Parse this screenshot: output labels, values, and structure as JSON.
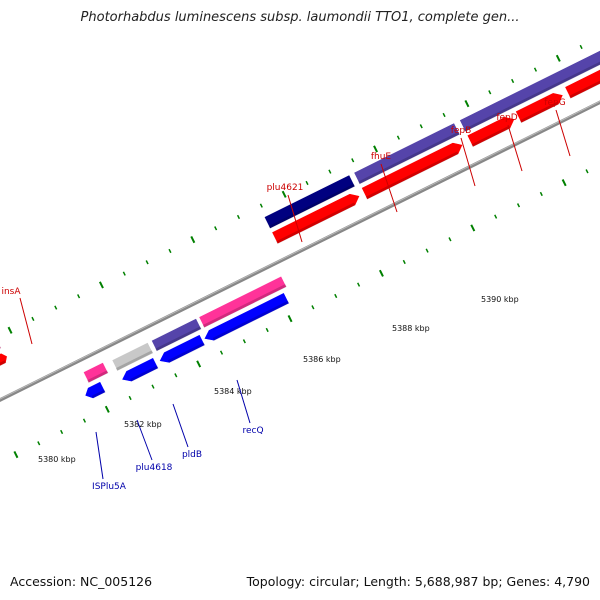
{
  "title": "Photorhabdus luminescens subsp. laumondii TTO1, complete gen...",
  "footer": {
    "accession": "Accession: NC_005126",
    "summary": "Topology: circular; Length: 5,688,987 bp; Genes: 4,790"
  },
  "colors": {
    "forward_gene": "#ff0000",
    "reverse_gene": "#0000ff",
    "forward_label": "#cc0000",
    "reverse_label": "#0000aa",
    "pink_gene": "#ff3399",
    "purple_gene": "#5544aa",
    "navy_gene": "#000080",
    "grey_gene": "#c8c8c8",
    "tick": "#008000",
    "backbone": "#888888"
  },
  "scale_labels": [
    {
      "text": "5380 kbp"
    },
    {
      "text": "5382 kbp"
    },
    {
      "text": "5384 kbp"
    },
    {
      "text": "5386 kbp"
    },
    {
      "text": "5388 kbp"
    },
    {
      "text": "5390 kbp"
    }
  ],
  "forward_labels": [
    {
      "text": "insA"
    },
    {
      "text": "plu4621"
    },
    {
      "text": "fhuE"
    },
    {
      "text": "fepB"
    },
    {
      "text": "fepD"
    },
    {
      "text": "fepG"
    }
  ],
  "reverse_labels": [
    {
      "text": "ISPlu5A"
    },
    {
      "text": "plu4618"
    },
    {
      "text": "pldB"
    },
    {
      "text": "recQ"
    }
  ]
}
